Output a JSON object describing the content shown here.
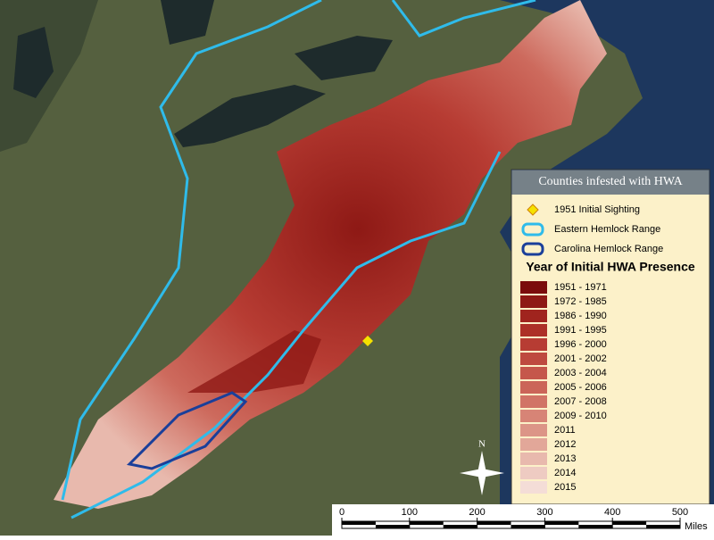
{
  "title": "Counties infested with HWA",
  "legend": {
    "items": [
      {
        "label": "1951 Initial Sighting",
        "symbol": "diamond",
        "color": "#f5e100"
      },
      {
        "label": "Eastern Hemlock Range",
        "symbol": "outline",
        "color": "#2fbbea"
      },
      {
        "label": "Carolina Hemlock Range",
        "symbol": "outline",
        "color": "#1a3f9a"
      }
    ],
    "heading": "Year of Initial HWA Presence",
    "classes": [
      {
        "label": "1951 - 1971",
        "color": "#7b0c0c"
      },
      {
        "label": "1972 - 1985",
        "color": "#8e1915"
      },
      {
        "label": "1986 - 1990",
        "color": "#a0241e"
      },
      {
        "label": "1991 - 1995",
        "color": "#ad3027"
      },
      {
        "label": "1996 - 2000",
        "color": "#b73c33"
      },
      {
        "label": "2001 - 2002",
        "color": "#be4a3f"
      },
      {
        "label": "2003 - 2004",
        "color": "#c5574b"
      },
      {
        "label": "2005 - 2006",
        "color": "#cb6558"
      },
      {
        "label": "2007 - 2008",
        "color": "#d17466"
      },
      {
        "label": "2009 - 2010",
        "color": "#d78476"
      },
      {
        "label": "2011",
        "color": "#dc9587"
      },
      {
        "label": "2012",
        "color": "#e2a799"
      },
      {
        "label": "2013",
        "color": "#e8b9ad"
      },
      {
        "label": "2014",
        "color": "#eecbc2"
      },
      {
        "label": "2015",
        "color": "#f4ddd7"
      }
    ]
  },
  "scale_bar": {
    "ticks": [
      0,
      100,
      200,
      300,
      400,
      500
    ],
    "unit": "Miles"
  },
  "north_arrow": "N"
}
